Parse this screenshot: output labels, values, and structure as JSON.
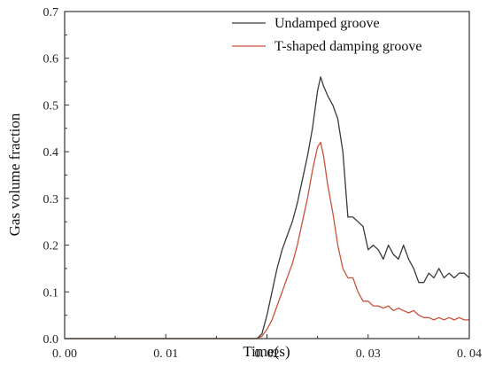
{
  "chart_data": {
    "type": "line",
    "title": "",
    "xlabel": "Time(s)",
    "ylabel": "Gas volume fraction",
    "xlim": [
      0.0,
      0.04
    ],
    "ylim": [
      0.0,
      0.7
    ],
    "x_ticks": [
      0.0,
      0.01,
      0.02,
      0.03,
      0.04
    ],
    "x_tick_labels": [
      "0. 00",
      "0. 01",
      "0. 02",
      "0. 03",
      "0. 04"
    ],
    "y_ticks": [
      0.0,
      0.1,
      0.2,
      0.3,
      0.4,
      0.5,
      0.6,
      0.7
    ],
    "y_tick_labels": [
      "0.0",
      "0.1",
      "0.2",
      "0.3",
      "0.4",
      "0.5",
      "0.6",
      "0.7"
    ],
    "grid": false,
    "legend_position": "top-right",
    "series": [
      {
        "name": "Undamped groove",
        "color": "#3a3a3a",
        "x": [
          0.0,
          0.019,
          0.0195,
          0.02,
          0.0205,
          0.021,
          0.0215,
          0.022,
          0.0225,
          0.023,
          0.0235,
          0.024,
          0.0245,
          0.025,
          0.0253,
          0.0256,
          0.026,
          0.0265,
          0.027,
          0.0275,
          0.028,
          0.0285,
          0.029,
          0.0295,
          0.03,
          0.0305,
          0.031,
          0.0315,
          0.032,
          0.0325,
          0.033,
          0.0335,
          0.034,
          0.0345,
          0.035,
          0.0355,
          0.036,
          0.0365,
          0.037,
          0.0375,
          0.038,
          0.0385,
          0.039,
          0.0395,
          0.04
        ],
        "values": [
          0.0,
          0.0,
          0.01,
          0.05,
          0.1,
          0.15,
          0.19,
          0.22,
          0.25,
          0.29,
          0.34,
          0.39,
          0.45,
          0.53,
          0.56,
          0.54,
          0.52,
          0.5,
          0.47,
          0.4,
          0.26,
          0.26,
          0.25,
          0.24,
          0.19,
          0.2,
          0.19,
          0.17,
          0.2,
          0.18,
          0.17,
          0.2,
          0.17,
          0.15,
          0.12,
          0.12,
          0.14,
          0.13,
          0.15,
          0.13,
          0.14,
          0.13,
          0.14,
          0.14,
          0.13
        ]
      },
      {
        "name": "T-shaped  damping groove",
        "color": "#c8523a",
        "x": [
          0.0,
          0.019,
          0.0195,
          0.02,
          0.0205,
          0.021,
          0.0215,
          0.022,
          0.0225,
          0.023,
          0.0235,
          0.024,
          0.0245,
          0.025,
          0.0253,
          0.0256,
          0.026,
          0.0265,
          0.027,
          0.0275,
          0.028,
          0.0285,
          0.029,
          0.0295,
          0.03,
          0.0305,
          0.031,
          0.0315,
          0.032,
          0.0325,
          0.033,
          0.0335,
          0.034,
          0.0345,
          0.035,
          0.0355,
          0.036,
          0.0365,
          0.037,
          0.0375,
          0.038,
          0.0385,
          0.039,
          0.0395,
          0.04
        ],
        "values": [
          0.0,
          0.0,
          0.005,
          0.02,
          0.04,
          0.07,
          0.1,
          0.13,
          0.16,
          0.2,
          0.25,
          0.3,
          0.36,
          0.41,
          0.42,
          0.39,
          0.33,
          0.27,
          0.2,
          0.15,
          0.13,
          0.13,
          0.1,
          0.08,
          0.08,
          0.07,
          0.07,
          0.065,
          0.07,
          0.06,
          0.065,
          0.06,
          0.055,
          0.06,
          0.05,
          0.045,
          0.045,
          0.04,
          0.045,
          0.04,
          0.045,
          0.04,
          0.045,
          0.04,
          0.04
        ]
      }
    ]
  }
}
